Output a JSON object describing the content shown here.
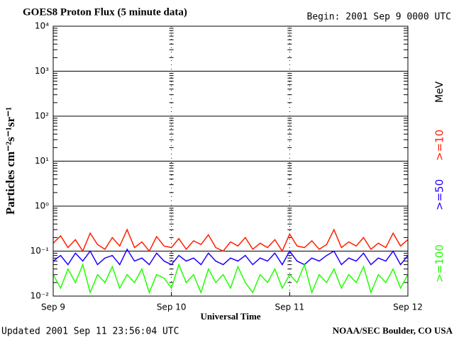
{
  "chart_data": {
    "type": "line",
    "title": "GOES8 Proton Flux (5 minute data)",
    "subtitle": "Begin: 2001 Sep 9 0000 UTC",
    "x_label": "Universal Time",
    "y_label": "Particles cm⁻²s⁻¹sr⁻¹",
    "legend_unit": "MeV",
    "footer_left": "Updated 2001 Sep 11 23:56:04 UTC",
    "footer_right": "NOAA/SEC Boulder, CO USA",
    "log_y": true,
    "grid": true,
    "xlim": [
      0,
      3
    ],
    "xticks": [
      {
        "value": 0,
        "label": "Sep 9"
      },
      {
        "value": 1,
        "label": "Sep 10"
      },
      {
        "value": 2,
        "label": "Sep 11"
      },
      {
        "value": 3,
        "label": "Sep 12"
      }
    ],
    "ylim": [
      0.01,
      10000
    ],
    "yticks": [
      {
        "value": 0.01,
        "label": "10⁻²"
      },
      {
        "value": 0.1,
        "label": "10⁻¹"
      },
      {
        "value": 1,
        "label": "10⁰"
      },
      {
        "value": 10,
        "label": "10¹"
      },
      {
        "value": 100,
        "label": "10²"
      },
      {
        "value": 1000,
        "label": "10³"
      },
      {
        "value": 10000,
        "label": "10⁴"
      }
    ],
    "x": [
      0,
      0.0625,
      0.125,
      0.1875,
      0.25,
      0.3125,
      0.375,
      0.4375,
      0.5,
      0.5625,
      0.625,
      0.6875,
      0.75,
      0.8125,
      0.875,
      0.9375,
      1,
      1.0625,
      1.125,
      1.1875,
      1.25,
      1.3125,
      1.375,
      1.4375,
      1.5,
      1.5625,
      1.625,
      1.6875,
      1.75,
      1.8125,
      1.875,
      1.9375,
      2,
      2.0625,
      2.125,
      2.1875,
      2.25,
      2.3125,
      2.375,
      2.4375,
      2.5,
      2.5625,
      2.625,
      2.6875,
      2.75,
      2.8125,
      2.875,
      2.9375,
      3
    ],
    "series": [
      {
        "name": ">=10",
        "color": "#ff2000",
        "values": [
          0.15,
          0.22,
          0.12,
          0.18,
          0.1,
          0.25,
          0.14,
          0.11,
          0.2,
          0.13,
          0.3,
          0.12,
          0.16,
          0.1,
          0.21,
          0.13,
          0.12,
          0.19,
          0.11,
          0.17,
          0.14,
          0.23,
          0.12,
          0.1,
          0.16,
          0.13,
          0.2,
          0.11,
          0.15,
          0.12,
          0.18,
          0.1,
          0.24,
          0.13,
          0.12,
          0.17,
          0.11,
          0.14,
          0.3,
          0.12,
          0.16,
          0.13,
          0.2,
          0.11,
          0.15,
          0.12,
          0.25,
          0.13,
          0.18
        ]
      },
      {
        "name": ">=50",
        "color": "#2000ff",
        "values": [
          0.06,
          0.08,
          0.05,
          0.09,
          0.06,
          0.1,
          0.05,
          0.07,
          0.08,
          0.05,
          0.11,
          0.06,
          0.07,
          0.05,
          0.09,
          0.06,
          0.05,
          0.08,
          0.06,
          0.07,
          0.05,
          0.09,
          0.06,
          0.05,
          0.07,
          0.06,
          0.08,
          0.05,
          0.07,
          0.06,
          0.09,
          0.05,
          0.1,
          0.06,
          0.05,
          0.07,
          0.06,
          0.08,
          0.1,
          0.05,
          0.07,
          0.06,
          0.09,
          0.05,
          0.07,
          0.06,
          0.1,
          0.05,
          0.08
        ]
      },
      {
        "name": ">=100",
        "color": "#20ff00",
        "values": [
          0.03,
          0.015,
          0.04,
          0.02,
          0.05,
          0.012,
          0.03,
          0.02,
          0.045,
          0.015,
          0.03,
          0.02,
          0.04,
          0.012,
          0.03,
          0.025,
          0.015,
          0.05,
          0.02,
          0.03,
          0.012,
          0.04,
          0.02,
          0.03,
          0.015,
          0.045,
          0.02,
          0.012,
          0.03,
          0.02,
          0.04,
          0.015,
          0.03,
          0.02,
          0.05,
          0.012,
          0.03,
          0.02,
          0.04,
          0.015,
          0.03,
          0.02,
          0.045,
          0.012,
          0.03,
          0.02,
          0.04,
          0.015,
          0.03
        ]
      }
    ]
  }
}
